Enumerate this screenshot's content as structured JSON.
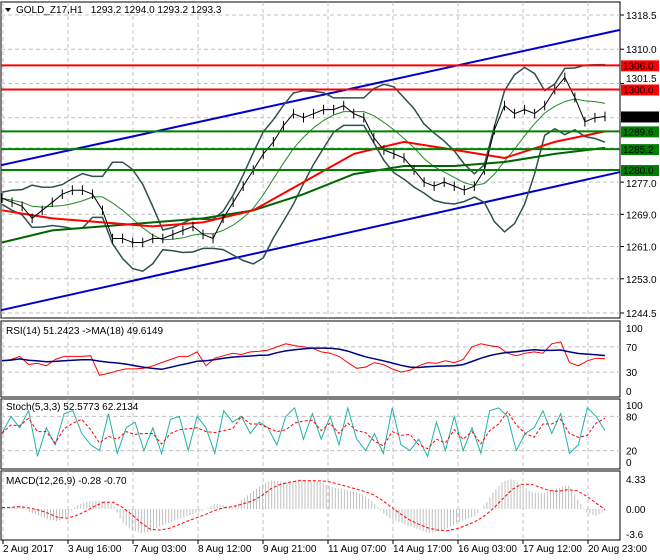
{
  "header": {
    "symbol_label": "GOLD_Z17,H1",
    "ohlc": "1293.2 1294.0 1293.2 1293.3"
  },
  "colors": {
    "support": "#008000",
    "resistance": "#ff0000",
    "channel": "#0000cc",
    "price": "#000000",
    "ma_fast": "#ff0000",
    "ma_slow": "#006400",
    "bands": "#2f4f4f",
    "rsi": "#ff0000",
    "rsi_ma": "#000080",
    "stoch_main": "#20b2aa",
    "stoch_signal": "#ff0000",
    "macd_hist": "#c0c0c0",
    "macd_signal": "#ff0000"
  },
  "x_labels": [
    "2 Aug 2017",
    "3 Aug 16:00",
    "7 Aug 03:00",
    "8 Aug 12:00",
    "9 Aug 21:00",
    "11 Aug 07:00",
    "14 Aug 17:00",
    "16 Aug 03:00",
    "17 Aug 12:00",
    "20 Aug 23:00"
  ],
  "chart_data": [
    {
      "type": "line",
      "title": "GOLD_Z17,H1 1293.2 1294.0 1293.2 1293.3",
      "ylim": [
        1244.5,
        1318.5
      ],
      "y_ticks": [
        "1318.5",
        "1310.0",
        "1301.5",
        "1277.0",
        "1269.0",
        "1261.0",
        "1253.0",
        "1244.5"
      ],
      "grid": true,
      "close": [
        1273,
        1272,
        1271,
        1268,
        1270,
        1272,
        1274,
        1275,
        1275,
        1274,
        1270,
        1263,
        1263,
        1262,
        1262,
        1263,
        1263,
        1264,
        1265,
        1266,
        1264,
        1263,
        1268,
        1272,
        1276,
        1280,
        1284,
        1287,
        1291,
        1294,
        1293,
        1294,
        1295,
        1295,
        1296,
        1294,
        1293,
        1288,
        1285,
        1284,
        1283,
        1280,
        1277,
        1276,
        1277,
        1276,
        1275,
        1276,
        1280,
        1290,
        1296,
        1294,
        1295,
        1294,
        1296,
        1300,
        1303,
        1298,
        1292,
        1293,
        1293.3
      ],
      "ma_red": [
        1270,
        1268,
        1267,
        1266,
        1267,
        1270,
        1277,
        1284,
        1287,
        1285,
        1283,
        1287,
        1289.6
      ],
      "ma_green": [
        1262,
        1265,
        1266,
        1267,
        1268,
        1270,
        1274,
        1279,
        1281,
        1281,
        1282,
        1284,
        1285.5
      ],
      "horizontal_levels": [
        {
          "value": 1306.0,
          "label": "1306.0",
          "kind": "resistance"
        },
        {
          "value": 1300.0,
          "label": "1300.0",
          "kind": "resistance"
        },
        {
          "value": 1289.6,
          "label": "1289.6",
          "kind": "support"
        },
        {
          "value": 1285.2,
          "label": "1285.2",
          "kind": "support"
        },
        {
          "value": 1280.0,
          "label": "1280.0",
          "kind": "support"
        }
      ],
      "channel": {
        "upper": [
          1281.2,
          1314.8
        ],
        "lower": [
          1245.2,
          1279.5
        ]
      },
      "last_price": "1293.3"
    },
    {
      "type": "line",
      "title": "RSI(14) 51.2423  ->MA(18) 49.6149",
      "ylim": [
        0,
        100
      ],
      "y_ticks": [
        "100",
        "70",
        "30",
        "0"
      ],
      "rsi": [
        48,
        50,
        55,
        42,
        44,
        40,
        50,
        55,
        55,
        55,
        56,
        25,
        28,
        32,
        35,
        35,
        36,
        40,
        45,
        50,
        55,
        55,
        62,
        40,
        52,
        56,
        60,
        58,
        62,
        63,
        65,
        70,
        75,
        72,
        70,
        68,
        62,
        60,
        55,
        45,
        36,
        38,
        45,
        42,
        35,
        30,
        33,
        40,
        45,
        44,
        48,
        45,
        50,
        70,
        75,
        72,
        70,
        60,
        56,
        60,
        62,
        60,
        75,
        78,
        45,
        40,
        48,
        52,
        51.2
      ]
    },
    {
      "type": "line",
      "title": "Stoch(5,3,3) 52.5773 62.2134",
      "ylim": [
        0,
        100
      ],
      "y_ticks": [
        "100",
        "80",
        "20",
        "0"
      ],
      "main": [
        50,
        80,
        60,
        90,
        10,
        60,
        30,
        85,
        90,
        50,
        30,
        20,
        85,
        15,
        60,
        70,
        20,
        60,
        15,
        75,
        80,
        20,
        80,
        60,
        15,
        90,
        70,
        80,
        50,
        70,
        60,
        30,
        80,
        95,
        40,
        85,
        40,
        80,
        30,
        95,
        40,
        20,
        50,
        15,
        95,
        30,
        20,
        40,
        10,
        70,
        20,
        80,
        20,
        60,
        15,
        90,
        95,
        80,
        20,
        50,
        60,
        90,
        50,
        85,
        15,
        30,
        95,
        80,
        55
      ]
    },
    {
      "type": "bar",
      "title": "MACD(12,26,9) -0.28 -0.70",
      "ylim": [
        -3.6,
        4.33
      ],
      "y_ticks": [
        "4.33",
        "0.00",
        "-3.6"
      ],
      "hist": [
        0.2,
        0.3,
        0.5,
        -0.5,
        -1,
        -1.5,
        -1.8,
        -1,
        0.5,
        1,
        1.2,
        1.2,
        0.5,
        -2,
        -3,
        -3.5,
        -3.2,
        -2.5,
        -2,
        -1.5,
        -1,
        -0.5,
        0,
        0.8,
        0.5,
        0.2,
        1.5,
        2.5,
        3.5,
        4.2,
        4.0,
        3.8,
        4.3,
        4.2,
        4.0,
        3.5,
        3.0,
        2.8,
        2.5,
        2.0,
        1.0,
        -0.5,
        -1.5,
        -2,
        -2.5,
        -3,
        -3.5,
        -3.2,
        -2.8,
        -2,
        -1.5,
        -1,
        0.5,
        2.5,
        4.0,
        4.3,
        3.5,
        2.5,
        2.2,
        2.5,
        3.0,
        3.5,
        1.5,
        -0.5,
        -1,
        -0.28
      ]
    }
  ]
}
